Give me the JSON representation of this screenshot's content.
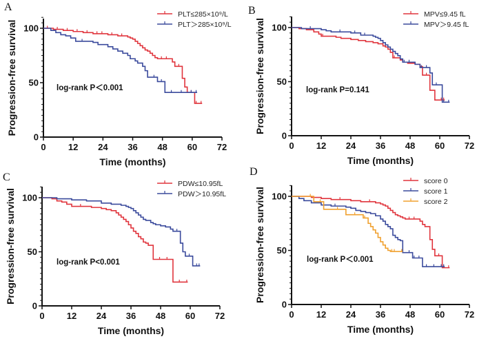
{
  "chart_data": [
    {
      "type": "line",
      "panel": "A",
      "title": "",
      "xlabel": "Time (months)",
      "ylabel": "Progression-free survival",
      "xlim": [
        0,
        72
      ],
      "ylim": [
        0,
        110
      ],
      "xticks": [
        "0",
        "12",
        "24",
        "36",
        "48",
        "60",
        "72"
      ],
      "yticks": [
        "0",
        "50",
        "100"
      ],
      "legend_position": "top-right",
      "annotation": "log-rank P＜0.001",
      "series": [
        {
          "name": "PLT≤285×10⁹/L",
          "color": "#e0343c",
          "x": [
            0,
            2,
            4,
            6,
            8,
            10,
            12,
            14,
            16,
            18,
            20,
            22,
            24,
            26,
            28,
            30,
            32,
            34,
            35,
            36,
            37,
            38,
            39,
            40,
            41,
            42,
            43,
            44,
            45,
            46,
            48,
            50,
            52,
            53,
            55,
            56,
            57,
            58,
            60,
            61,
            62,
            64
          ],
          "y": [
            100,
            100,
            99,
            99,
            98,
            98,
            97,
            97,
            96,
            96,
            95,
            95,
            95,
            94,
            94,
            93,
            93,
            92,
            91,
            90,
            88,
            86,
            84,
            82,
            80,
            79,
            77,
            75,
            73,
            72,
            72,
            72,
            69,
            65,
            65,
            54,
            46,
            41,
            41,
            31,
            31,
            31
          ]
        },
        {
          "name": "PLT＞285×10⁹/L",
          "color": "#3a4a9c",
          "x": [
            0,
            3,
            5,
            7,
            9,
            11,
            13,
            16,
            20,
            22,
            26,
            28,
            30,
            32,
            34,
            35,
            37,
            38,
            40,
            41,
            42,
            45,
            46,
            48,
            49,
            52,
            56,
            60,
            62
          ],
          "y": [
            100,
            98,
            96,
            94,
            93,
            91,
            88,
            88,
            87,
            85,
            83,
            81,
            79,
            77,
            75,
            72,
            70,
            68,
            65,
            61,
            55,
            55,
            51,
            51,
            41,
            41,
            41,
            41,
            41
          ]
        }
      ]
    },
    {
      "type": "line",
      "panel": "B",
      "title": "",
      "xlabel": "Time (months)",
      "ylabel": "Progression-free survival",
      "xlim": [
        0,
        72
      ],
      "ylim": [
        0,
        110
      ],
      "xticks": [
        "0",
        "12",
        "24",
        "36",
        "48",
        "60",
        "72"
      ],
      "yticks": [
        "0",
        "50",
        "100"
      ],
      "legend_position": "top-right",
      "annotation": "log-rank P=0.141",
      "series": [
        {
          "name": "MPV≤9.45 fL",
          "color": "#e0343c",
          "x": [
            0,
            3,
            6,
            9,
            11,
            12,
            13,
            18,
            20,
            24,
            27,
            30,
            33,
            35,
            37,
            38,
            39,
            40,
            41,
            42,
            44,
            45,
            47,
            50,
            52,
            53,
            55,
            56,
            58,
            61,
            62
          ],
          "y": [
            100,
            99,
            98,
            96,
            94,
            92,
            92,
            91,
            90,
            89,
            88,
            87,
            86,
            85,
            83,
            82,
            80,
            77,
            72,
            72,
            70,
            68,
            67,
            66,
            64,
            56,
            56,
            42,
            33,
            33,
            33
          ]
        },
        {
          "name": "MPV＞9.45 fL",
          "color": "#3a4a9c",
          "x": [
            0,
            4,
            8,
            12,
            14,
            16,
            20,
            24,
            26,
            28,
            30,
            33,
            34,
            35,
            36,
            37,
            38,
            39,
            40,
            41,
            42,
            43,
            44,
            45,
            46,
            48,
            50,
            52,
            53,
            55,
            56,
            57,
            59,
            61,
            62,
            64
          ],
          "y": [
            100,
            99,
            99,
            98,
            97,
            96,
            96,
            95,
            95,
            93,
            93,
            92,
            91,
            90,
            88,
            86,
            84,
            82,
            80,
            78,
            76,
            74,
            71,
            68,
            68,
            68,
            66,
            63,
            63,
            63,
            58,
            47,
            47,
            31,
            31,
            31
          ]
        }
      ]
    },
    {
      "type": "line",
      "panel": "C",
      "title": "",
      "xlabel": "Time (months)",
      "ylabel": "Progression-free survival",
      "xlim": [
        0,
        72
      ],
      "ylim": [
        0,
        110
      ],
      "xticks": [
        "0",
        "12",
        "24",
        "36",
        "48",
        "60",
        "72"
      ],
      "yticks": [
        "0",
        "50",
        "100"
      ],
      "legend_position": "top-right",
      "annotation": "log-rank P<0.001",
      "series": [
        {
          "name": "PDW≤10.95fL",
          "color": "#e0343c",
          "x": [
            0,
            4,
            6,
            8,
            10,
            12,
            16,
            20,
            24,
            26,
            28,
            30,
            31,
            32,
            33,
            34,
            35,
            36,
            37,
            38,
            39,
            40,
            41,
            42,
            43,
            45,
            48,
            51,
            53,
            56,
            59
          ],
          "y": [
            100,
            99,
            97,
            96,
            94,
            92,
            92,
            91,
            90,
            89,
            88,
            86,
            84,
            82,
            80,
            78,
            75,
            72,
            69,
            67,
            64,
            62,
            59,
            58,
            56,
            43,
            43,
            43,
            22,
            22,
            22
          ]
        },
        {
          "name": "PDW＞10.95fL",
          "color": "#3a4a9c",
          "x": [
            0,
            6,
            12,
            18,
            24,
            28,
            32,
            34,
            35,
            36,
            37,
            38,
            39,
            40,
            41,
            42,
            44,
            45,
            46,
            48,
            50,
            52,
            53,
            55,
            56,
            57,
            58,
            60,
            61,
            63,
            64
          ],
          "y": [
            100,
            99,
            98,
            97,
            95,
            94,
            93,
            92,
            91,
            90,
            88,
            86,
            84,
            82,
            80,
            79,
            77,
            76,
            75,
            74,
            73,
            71,
            69,
            69,
            58,
            50,
            46,
            46,
            37,
            37,
            37
          ]
        }
      ]
    },
    {
      "type": "line",
      "panel": "D",
      "title": "",
      "xlabel": "Time (months)",
      "ylabel": "Progression-free survival",
      "xlim": [
        0,
        72
      ],
      "ylim": [
        0,
        110
      ],
      "xticks": [
        "0",
        "12",
        "24",
        "36",
        "48",
        "60",
        "72"
      ],
      "yticks": [
        "0",
        "50",
        "100"
      ],
      "legend_position": "top-right",
      "annotation": "log-rank P＜0.001",
      "series": [
        {
          "name": "score 0",
          "color": "#e0343c",
          "x": [
            0,
            8,
            12,
            16,
            20,
            24,
            28,
            32,
            34,
            36,
            37,
            38,
            39,
            40,
            41,
            42,
            43,
            44,
            45,
            46,
            48,
            50,
            52,
            53,
            54,
            56,
            57,
            58,
            60,
            61,
            62,
            64
          ],
          "y": [
            100,
            99,
            98,
            97,
            97,
            96,
            95,
            95,
            94,
            93,
            92,
            91,
            89,
            87,
            85,
            83,
            82,
            81,
            80,
            79,
            79,
            79,
            77,
            74,
            72,
            60,
            51,
            45,
            45,
            34,
            34,
            34
          ]
        },
        {
          "name": "score 1",
          "color": "#3a4a9c",
          "x": [
            0,
            3,
            5,
            8,
            12,
            16,
            18,
            22,
            24,
            26,
            28,
            30,
            32,
            34,
            36,
            37,
            38,
            39,
            40,
            41,
            42,
            43,
            44,
            45,
            48,
            49,
            50,
            52,
            53,
            55,
            58,
            61,
            62
          ],
          "y": [
            100,
            98,
            96,
            94,
            92,
            91,
            91,
            90,
            89,
            87,
            86,
            85,
            84,
            82,
            79,
            77,
            74,
            72,
            70,
            64,
            62,
            60,
            59,
            48,
            48,
            43,
            43,
            43,
            35,
            35,
            35,
            35,
            35
          ]
        },
        {
          "name": "score 2",
          "color": "#f0a02e",
          "x": [
            0,
            8,
            9,
            12,
            13,
            19,
            22,
            26,
            29,
            30,
            31,
            32,
            33,
            34,
            35,
            36,
            37,
            38,
            39,
            40,
            41,
            42,
            45
          ],
          "y": [
            100,
            100,
            95,
            95,
            88,
            88,
            83,
            83,
            80,
            80,
            75,
            72,
            69,
            66,
            62,
            58,
            55,
            52,
            50,
            49,
            49,
            49,
            49
          ]
        }
      ]
    }
  ]
}
